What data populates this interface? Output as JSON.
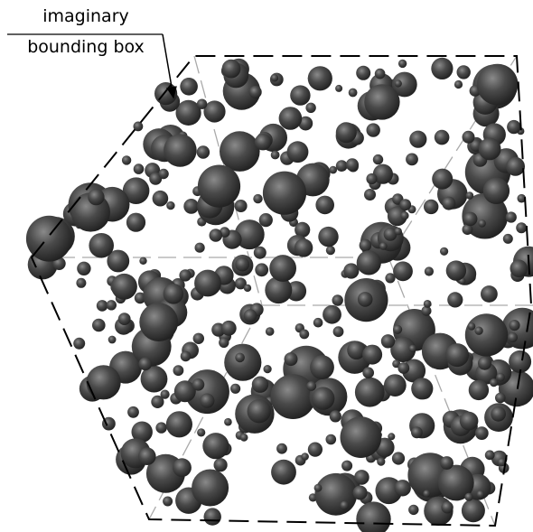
{
  "annotation": {
    "line1": "imaginary",
    "line2": "bounding box"
  }
}
